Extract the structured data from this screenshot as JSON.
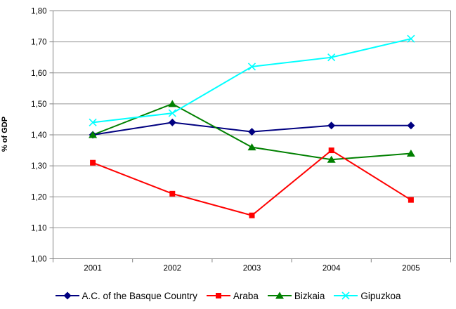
{
  "chart_data": {
    "type": "line",
    "title": "",
    "xlabel": "",
    "ylabel": "% of GDP",
    "x_categories": [
      "2001",
      "2002",
      "2003",
      "2004",
      "2005"
    ],
    "ylim": [
      1.0,
      1.8
    ],
    "y_tick_step": 0.1,
    "y_tick_labels": [
      "1,80",
      "1,70",
      "1,60",
      "1,50",
      "1,40",
      "1,30",
      "1,20",
      "1,10",
      "1,00"
    ],
    "grid": true,
    "legend_position": "bottom",
    "series": [
      {
        "name": "A.C. of the Basque Country",
        "color": "#000080",
        "marker": "diamond",
        "values": [
          1.4,
          1.44,
          1.41,
          1.43,
          1.43
        ]
      },
      {
        "name": "Araba",
        "color": "#FF0000",
        "marker": "square",
        "values": [
          1.31,
          1.21,
          1.14,
          1.35,
          1.19
        ]
      },
      {
        "name": "Bizkaia",
        "color": "#008000",
        "marker": "triangle",
        "values": [
          1.4,
          1.5,
          1.36,
          1.32,
          1.34
        ]
      },
      {
        "name": "Gipuzkoa",
        "color": "#00FFFF",
        "marker": "x",
        "values": [
          1.44,
          1.47,
          1.62,
          1.65,
          1.71
        ]
      }
    ],
    "colors": {
      "background": "#FFFFFF",
      "plot_background": "#FFFFFF",
      "gridline": "#969696",
      "axis": "#808080",
      "text": "#000000"
    }
  }
}
